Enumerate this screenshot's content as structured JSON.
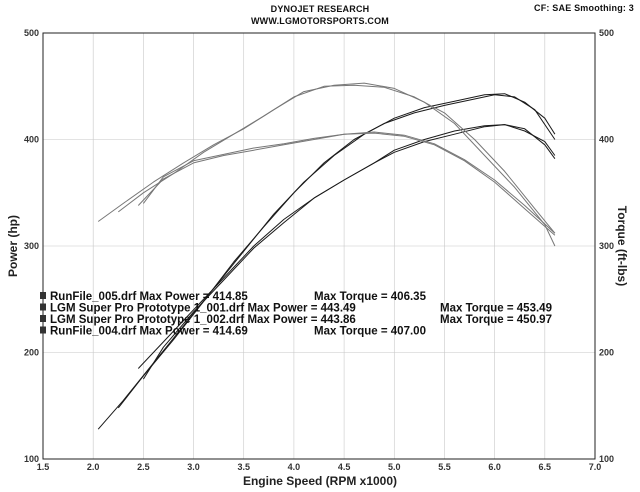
{
  "header": {
    "title": "DYNOJET RESEARCH",
    "subtitle": "WWW.LGMOTORSPORTS.COM",
    "settings": "CF: SAE  Smoothing: 3"
  },
  "chart_data": {
    "type": "line",
    "title": "DYNOJET RESEARCH",
    "xlabel": "Engine Speed (RPM x1000)",
    "ylabel": "Power (hp)",
    "y2label": "Torque (ft-lbs)",
    "xlim": [
      1.5,
      7.0
    ],
    "ylim": [
      100,
      500
    ],
    "y2lim": [
      100,
      500
    ],
    "x_ticks": [
      "1.5",
      "2.0",
      "2.5",
      "3.0",
      "3.5",
      "4.0",
      "4.5",
      "5.0",
      "5.5",
      "6.0",
      "6.5",
      "7.0"
    ],
    "y_ticks": [
      "100",
      "200",
      "300",
      "400",
      "500"
    ],
    "y2_ticks": [
      "100",
      "200",
      "300",
      "400",
      "500"
    ],
    "grid": true,
    "series": [
      {
        "name": "RunFile_005 Power",
        "kind": "power",
        "x": [
          2.45,
          2.7,
          3.0,
          3.3,
          3.6,
          3.9,
          4.2,
          4.5,
          4.8,
          5.0,
          5.3,
          5.6,
          5.9,
          6.1,
          6.3,
          6.5,
          6.6
        ],
        "y": [
          185,
          210,
          240,
          270,
          300,
          325,
          345,
          362,
          378,
          388,
          398,
          405,
          412,
          414,
          408,
          398,
          385
        ]
      },
      {
        "name": "RunFile_004 Power",
        "kind": "power",
        "x": [
          2.5,
          2.7,
          3.0,
          3.3,
          3.6,
          3.9,
          4.2,
          4.5,
          4.8,
          5.0,
          5.3,
          5.6,
          5.9,
          6.1,
          6.3,
          6.5,
          6.6
        ],
        "y": [
          175,
          205,
          238,
          268,
          298,
          322,
          345,
          362,
          378,
          390,
          400,
          408,
          413,
          414,
          410,
          395,
          382
        ]
      },
      {
        "name": "LGM Super Pro Prototype 1_001 Power",
        "kind": "power",
        "x": [
          2.05,
          2.3,
          2.6,
          2.9,
          3.2,
          3.5,
          3.8,
          4.1,
          4.4,
          4.7,
          5.0,
          5.3,
          5.6,
          5.9,
          6.1,
          6.3,
          6.5,
          6.6
        ],
        "y": [
          128,
          155,
          190,
          225,
          260,
          295,
          330,
          360,
          385,
          405,
          420,
          430,
          436,
          442,
          443,
          435,
          420,
          405
        ]
      },
      {
        "name": "LGM Super Pro Prototype 1_002 Power",
        "kind": "power",
        "x": [
          2.25,
          2.5,
          2.8,
          3.1,
          3.4,
          3.7,
          4.0,
          4.3,
          4.6,
          4.9,
          5.2,
          5.5,
          5.8,
          6.0,
          6.2,
          6.4,
          6.6
        ],
        "y": [
          148,
          178,
          212,
          248,
          285,
          318,
          350,
          378,
          400,
          415,
          425,
          432,
          438,
          442,
          440,
          428,
          400
        ]
      },
      {
        "name": "RunFile_005 Torque",
        "kind": "torque",
        "x": [
          2.45,
          2.7,
          3.0,
          3.3,
          3.6,
          3.9,
          4.2,
          4.5,
          4.8,
          5.1,
          5.4,
          5.7,
          6.0,
          6.3,
          6.6
        ],
        "y": [
          338,
          363,
          378,
          385,
          390,
          395,
          400,
          405,
          406,
          403,
          395,
          380,
          360,
          335,
          310
        ]
      },
      {
        "name": "RunFile_004 Torque",
        "kind": "torque",
        "x": [
          2.5,
          2.7,
          3.0,
          3.3,
          3.6,
          3.9,
          4.2,
          4.5,
          4.8,
          5.1,
          5.4,
          5.7,
          6.0,
          6.3,
          6.6
        ],
        "y": [
          340,
          365,
          380,
          386,
          392,
          396,
          401,
          405,
          407,
          404,
          396,
          381,
          362,
          338,
          312
        ]
      },
      {
        "name": "LGM Super Pro Prototype 1_001 Torque",
        "kind": "torque",
        "x": [
          2.05,
          2.3,
          2.6,
          2.9,
          3.2,
          3.5,
          3.8,
          4.1,
          4.4,
          4.7,
          5.0,
          5.3,
          5.6,
          5.9,
          6.2,
          6.5,
          6.6
        ],
        "y": [
          323,
          340,
          360,
          378,
          395,
          410,
          428,
          445,
          451,
          453,
          448,
          435,
          415,
          385,
          355,
          320,
          300
        ]
      },
      {
        "name": "LGM Super Pro Prototype 1_002 Torque",
        "kind": "torque",
        "x": [
          2.25,
          2.5,
          2.8,
          3.1,
          3.4,
          3.7,
          4.0,
          4.3,
          4.6,
          4.9,
          5.2,
          5.5,
          5.8,
          6.1,
          6.4,
          6.6
        ],
        "y": [
          332,
          350,
          368,
          388,
          405,
          422,
          440,
          450,
          451,
          449,
          440,
          425,
          400,
          370,
          335,
          312
        ]
      }
    ],
    "legend": [
      {
        "file": "RunFile_005.drf",
        "text": "RunFile_005.drf Max Power = 414.85",
        "torque": "Max Torque = 406.35",
        "max_power": 414.85,
        "max_torque": 406.35
      },
      {
        "file": "LGM Super Pro Prototype 1_001.drf",
        "text": "LGM Super Pro Prototype 1_001.drf Max Power = 443.49",
        "torque": "Max Torque = 453.49",
        "max_power": 443.49,
        "max_torque": 453.49
      },
      {
        "file": "LGM Super Pro Prototype 1_002.drf",
        "text": "LGM Super Pro Prototype 1_002.drf Max Power = 443.86",
        "torque": "Max Torque = 450.97",
        "max_power": 443.86,
        "max_torque": 450.97
      },
      {
        "file": "RunFile_004.drf",
        "text": "RunFile_004.drf Max Power = 414.69",
        "torque": "Max Torque = 407.00",
        "max_power": 414.69,
        "max_torque": 407.0
      }
    ],
    "legend_position": "lower-left"
  }
}
